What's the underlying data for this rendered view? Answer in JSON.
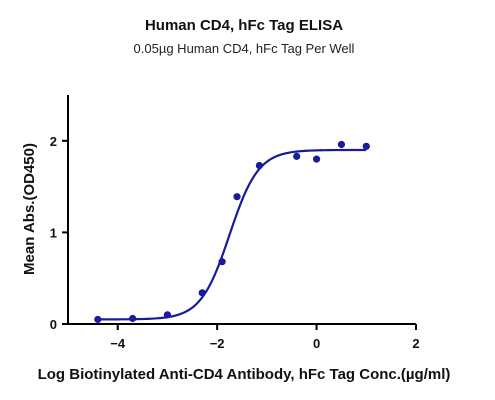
{
  "chart_data": {
    "type": "scatter",
    "title": "Human CD4, hFc Tag ELISA",
    "subtitle": "0.05µg Human CD4, hFc Tag Per Well",
    "xlabel": "Log Biotinylated Anti-CD4 Antibody, hFc Tag Conc.(µg/ml)",
    "ylabel": "Mean Abs.(OD450)",
    "xlim": [
      -5,
      2
    ],
    "ylim": [
      0,
      2.5
    ],
    "x_ticks": [
      -4,
      -2,
      0,
      2
    ],
    "y_ticks": [
      0,
      1,
      2
    ],
    "grid": false,
    "color": "#1a1a9c",
    "series": [
      {
        "x": [
          -4.4,
          -3.7,
          -3.0,
          -2.3,
          -1.9,
          -1.6,
          -1.15,
          -0.4,
          0.0,
          0.5,
          1.0
        ],
        "y": [
          0.05,
          0.06,
          0.1,
          0.34,
          0.68,
          1.39,
          1.73,
          1.83,
          1.8,
          1.96,
          1.94
        ]
      }
    ],
    "fit": {
      "model": "4PL",
      "bottom": 0.05,
      "top": 1.9,
      "log_ec50": -1.75,
      "hill_slope": 1.5
    }
  }
}
